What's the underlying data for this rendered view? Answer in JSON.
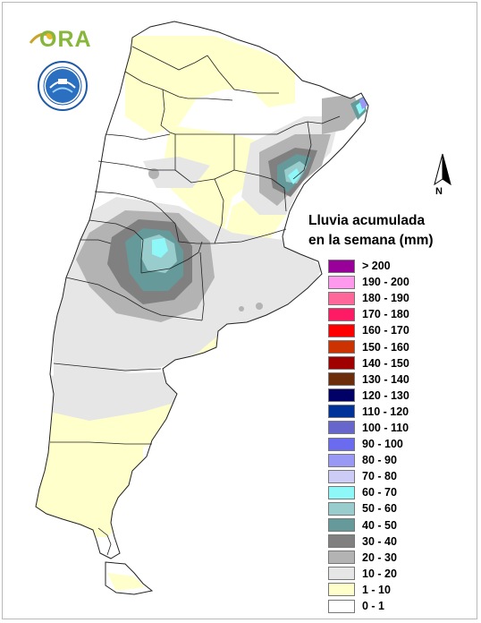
{
  "logo": {
    "text": "ORA",
    "name": "ora-logo"
  },
  "seal": {
    "name": "agency-seal"
  },
  "north_arrow": {
    "label": "N"
  },
  "legend": {
    "title_line1": "Lluvia acumulada",
    "title_line2": "en la semana (mm)",
    "items": [
      {
        "label": "> 200",
        "color": "#990099"
      },
      {
        "label": "190 - 200",
        "color": "#ff99ee"
      },
      {
        "label": "180 - 190",
        "color": "#ff6699"
      },
      {
        "label": "170 - 180",
        "color": "#ff1a66"
      },
      {
        "label": "160 - 170",
        "color": "#ff0000"
      },
      {
        "label": "150 - 160",
        "color": "#cc3300"
      },
      {
        "label": "140 - 150",
        "color": "#a00000"
      },
      {
        "label": "130 - 140",
        "color": "#6b2d0a"
      },
      {
        "label": "120 - 130",
        "color": "#000066"
      },
      {
        "label": "110 - 120",
        "color": "#003399"
      },
      {
        "label": "100 - 110",
        "color": "#6666cc"
      },
      {
        "label": "90 - 100",
        "color": "#6b6bf0"
      },
      {
        "label": "80 - 90",
        "color": "#9999f5"
      },
      {
        "label": "70 - 80",
        "color": "#ccccf7"
      },
      {
        "label": "60 - 70",
        "color": "#8ef8f8"
      },
      {
        "label": "50 - 60",
        "color": "#99cccc"
      },
      {
        "label": "40 - 50",
        "color": "#669999"
      },
      {
        "label": "30 - 40",
        "color": "#808080"
      },
      {
        "label": "20 - 30",
        "color": "#b3b3b3"
      },
      {
        "label": "10 - 20",
        "color": "#e6e6e6"
      },
      {
        "label": "1 - 10",
        "color": "#ffffcc"
      },
      {
        "label": "0 - 1",
        "color": "#ffffff"
      }
    ]
  },
  "colors": {
    "land_base": "#ffffff",
    "light_yellow": "#ffffcc",
    "light_gray": "#e6e6e6",
    "mid_gray": "#b3b3b3",
    "dark_gray": "#808080",
    "teal": "#669999",
    "teal_light": "#99cccc",
    "cyan": "#8ef8f8",
    "purple_blue": "#9999f5",
    "border": "#222222"
  }
}
